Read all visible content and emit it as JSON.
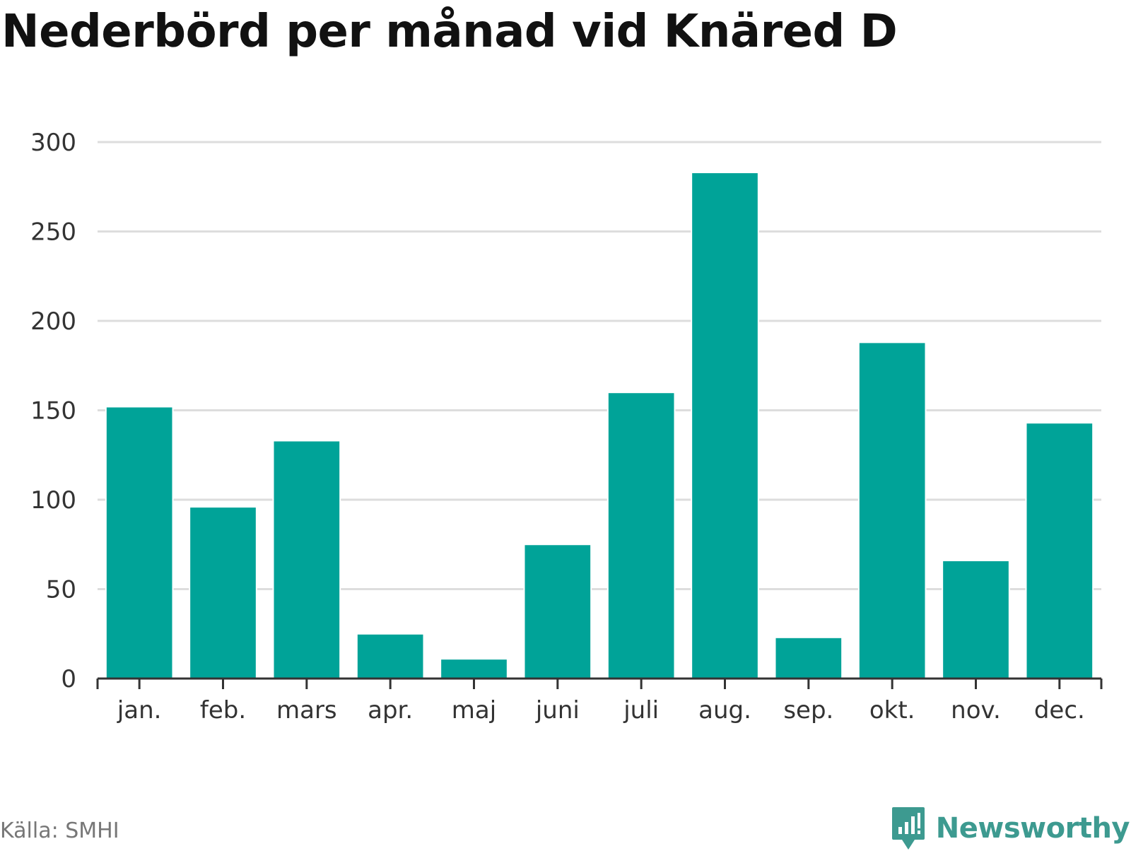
{
  "title": "Nederbörd per månad vid Knäred D",
  "source": "Källa: SMHI",
  "brand": {
    "name": "Newsworthy",
    "icon": "newsworthy-logo-icon",
    "color": "#3d9a90"
  },
  "colors": {
    "bar": "#00a398",
    "grid": "#dddddd",
    "axis": "#333333"
  },
  "chart_data": {
    "type": "bar",
    "categories": [
      "jan.",
      "feb.",
      "mars",
      "apr.",
      "maj",
      "juni",
      "juli",
      "aug.",
      "sep.",
      "okt.",
      "nov.",
      "dec."
    ],
    "values": [
      152,
      96,
      133,
      25,
      11,
      75,
      160,
      283,
      23,
      188,
      66,
      143
    ],
    "ylim": [
      0,
      300
    ],
    "yticks": [
      0,
      50,
      100,
      150,
      200,
      250,
      300
    ],
    "title": "Nederbörd per månad vid Knäred D",
    "xlabel": "",
    "ylabel": "",
    "grid": true,
    "legend": "none"
  }
}
